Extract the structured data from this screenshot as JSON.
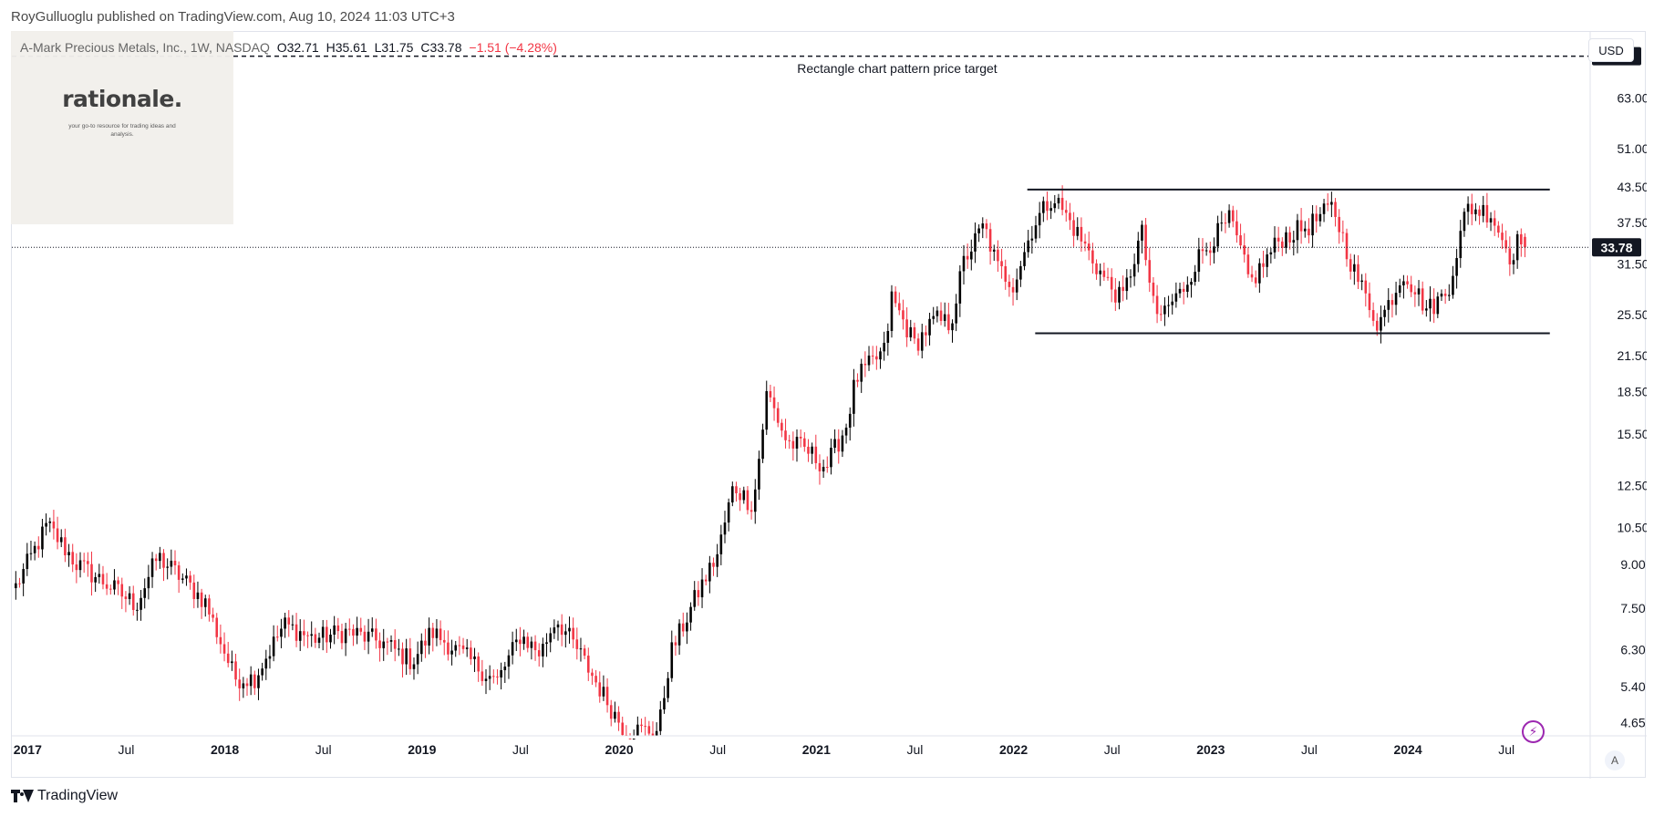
{
  "publish_line": "RoyGulluoglu published on TradingView.com, Aug 10, 2024 11:03 UTC+3",
  "legend": {
    "name": "A-Mark Precious Metals, Inc., 1W, NASDAQ",
    "open": "O32.71",
    "high": "H35.61",
    "low": "L31.75",
    "close": "C33.78",
    "change": "−1.51 (−4.28%)"
  },
  "logo": {
    "text": "rationale.",
    "tagline": "your go-to resource for trading ideas and analysis."
  },
  "currency_button": "USD",
  "auto_scale_button": "A",
  "footer_brand": "TradingView",
  "colors": {
    "up": "#000000",
    "down": "#f23645",
    "grid_text": "#131722",
    "price_line": "#131722"
  },
  "icons": {
    "flash": "lightning-bolt-icon",
    "tv_logo": "tradingview-logo-icon"
  },
  "chart_data": {
    "type": "candlestick",
    "scale": "log",
    "x_ticks": [
      {
        "label": "2017",
        "year": 2017.0,
        "bold": true
      },
      {
        "label": "Jul",
        "year": 2017.5,
        "bold": false
      },
      {
        "label": "2018",
        "year": 2018.0,
        "bold": true
      },
      {
        "label": "Jul",
        "year": 2018.5,
        "bold": false
      },
      {
        "label": "2019",
        "year": 2019.0,
        "bold": true
      },
      {
        "label": "Jul",
        "year": 2019.5,
        "bold": false
      },
      {
        "label": "2020",
        "year": 2020.0,
        "bold": true
      },
      {
        "label": "Jul",
        "year": 2020.5,
        "bold": false
      },
      {
        "label": "2021",
        "year": 2021.0,
        "bold": true
      },
      {
        "label": "Jul",
        "year": 2021.5,
        "bold": false
      },
      {
        "label": "2022",
        "year": 2022.0,
        "bold": true
      },
      {
        "label": "Jul",
        "year": 2022.5,
        "bold": false
      },
      {
        "label": "2023",
        "year": 2023.0,
        "bold": true
      },
      {
        "label": "Jul",
        "year": 2023.5,
        "bold": false
      },
      {
        "label": "2024",
        "year": 2024.0,
        "bold": true
      },
      {
        "label": "Jul",
        "year": 2024.5,
        "bold": false
      }
    ],
    "y_ticks": [
      {
        "label": "63.00",
        "value": 63.0
      },
      {
        "label": "51.00",
        "value": 51.0
      },
      {
        "label": "43.50",
        "value": 43.5
      },
      {
        "label": "37.50",
        "value": 37.5
      },
      {
        "label": "31.50",
        "value": 31.5
      },
      {
        "label": "25.50",
        "value": 25.5
      },
      {
        "label": "21.50",
        "value": 21.5
      },
      {
        "label": "18.50",
        "value": 18.5
      },
      {
        "label": "15.50",
        "value": 15.5
      },
      {
        "label": "12.50",
        "value": 12.5
      },
      {
        "label": "10.50",
        "value": 10.5
      },
      {
        "label": "9.00",
        "value": 9.0
      },
      {
        "label": "7.50",
        "value": 7.5
      },
      {
        "label": "6.30",
        "value": 6.3
      },
      {
        "label": "5.40",
        "value": 5.4
      },
      {
        "label": "4.65",
        "value": 4.65
      }
    ],
    "y_range": [
      4.4,
      83.0
    ],
    "x_range": [
      2016.92,
      2024.92
    ],
    "last_price": {
      "value": 33.78,
      "label": "33.78"
    },
    "target_price": {
      "value": 75.0,
      "label": "75.00"
    },
    "annotations": [
      {
        "text": "Rectangle chart pattern price target",
        "year": 2021.41,
        "value": 71.0
      }
    ],
    "rectangle": {
      "top": 43.0,
      "bottom": 23.6,
      "top_from": 2022.07,
      "top_to": 2024.72,
      "bottom_from": 2022.11,
      "bottom_to": 2024.72
    },
    "anchors": [
      [
        2016.94,
        8.2
      ],
      [
        2017.1,
        10.6
      ],
      [
        2017.25,
        9.0
      ],
      [
        2017.4,
        8.3
      ],
      [
        2017.55,
        7.6
      ],
      [
        2017.66,
        9.3
      ],
      [
        2017.78,
        8.5
      ],
      [
        2017.9,
        7.7
      ],
      [
        2018.05,
        5.6
      ],
      [
        2018.15,
        5.6
      ],
      [
        2018.3,
        7.0
      ],
      [
        2018.45,
        6.6
      ],
      [
        2018.62,
        6.8
      ],
      [
        2018.8,
        6.5
      ],
      [
        2018.95,
        6.0
      ],
      [
        2019.05,
        6.8
      ],
      [
        2019.25,
        6.0
      ],
      [
        2019.38,
        5.5
      ],
      [
        2019.5,
        6.7
      ],
      [
        2019.6,
        6.2
      ],
      [
        2019.68,
        7.2
      ],
      [
        2019.8,
        6.2
      ],
      [
        2019.95,
        5.0
      ],
      [
        2020.03,
        4.5
      ],
      [
        2020.2,
        4.5
      ],
      [
        2020.26,
        6.2
      ],
      [
        2020.4,
        8.0
      ],
      [
        2020.5,
        9.4
      ],
      [
        2020.58,
        12.5
      ],
      [
        2020.68,
        11.5
      ],
      [
        2020.75,
        18.5
      ],
      [
        2020.85,
        15.0
      ],
      [
        2020.95,
        14.5
      ],
      [
        2021.05,
        13.5
      ],
      [
        2021.15,
        16.0
      ],
      [
        2021.2,
        19.5
      ],
      [
        2021.35,
        22.0
      ],
      [
        2021.38,
        27.5
      ],
      [
        2021.5,
        22.5
      ],
      [
        2021.6,
        25.0
      ],
      [
        2021.68,
        24.5
      ],
      [
        2021.75,
        32.0
      ],
      [
        2021.85,
        37.0
      ],
      [
        2021.92,
        31.0
      ],
      [
        2022.0,
        29.0
      ],
      [
        2022.1,
        37.0
      ],
      [
        2022.2,
        42.0
      ],
      [
        2022.32,
        36.0
      ],
      [
        2022.45,
        30.0
      ],
      [
        2022.55,
        27.0
      ],
      [
        2022.65,
        36.0
      ],
      [
        2022.72,
        25.0
      ],
      [
        2022.85,
        28.0
      ],
      [
        2022.95,
        33.0
      ],
      [
        2023.1,
        38.0
      ],
      [
        2023.2,
        29.0
      ],
      [
        2023.35,
        35.0
      ],
      [
        2023.5,
        37.0
      ],
      [
        2023.62,
        40.0
      ],
      [
        2023.72,
        31.0
      ],
      [
        2023.85,
        24.5
      ],
      [
        2023.98,
        30.5
      ],
      [
        2024.1,
        26.0
      ],
      [
        2024.2,
        28.0
      ],
      [
        2024.3,
        40.0
      ],
      [
        2024.42,
        39.0
      ],
      [
        2024.52,
        32.5
      ],
      [
        2024.6,
        37.0
      ],
      [
        2024.61,
        33.78
      ]
    ]
  }
}
